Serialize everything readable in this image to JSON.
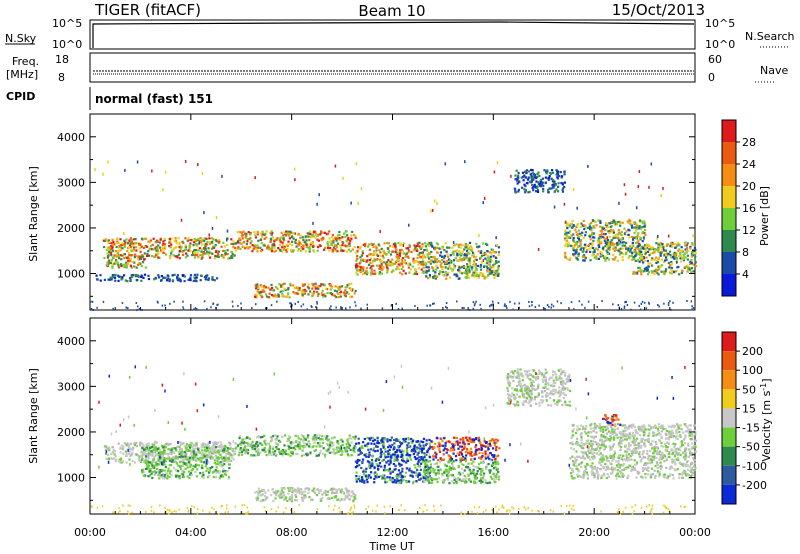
{
  "header": {
    "radar": "TIGER (fitACF)",
    "beam": "Beam 10",
    "date": "15/Oct/2013"
  },
  "top_panels": {
    "nsky_label": "N.Sky",
    "nsky_ticks": [
      "10^5",
      "10^0"
    ],
    "nsearch_label": "N.Search",
    "nsearch_ticks": [
      "10^5",
      "10^0"
    ],
    "freq_label": "Freq.",
    "freq_unit": "[MHz]",
    "freq_ticks": [
      "18",
      "8"
    ],
    "nave_label": "Nave",
    "nave_ticks": [
      "60",
      "0"
    ],
    "cpid_label": "CPID",
    "cpid_text": "normal (fast) 151"
  },
  "chart_data": [
    {
      "type": "heatmap",
      "name": "power-panel",
      "ylabel": "Slant Range [km]",
      "xlabel": "",
      "ylim": [
        200,
        4500
      ],
      "yticks": [
        "1000",
        "2000",
        "3000",
        "4000"
      ],
      "colorbar": {
        "label": "Power [dB]",
        "ticks": [
          "4",
          "8",
          "12",
          "16",
          "20",
          "24",
          "28"
        ],
        "colors": [
          "#0a1ad8",
          "#1c4aa8",
          "#2d8a4e",
          "#6fcf3a",
          "#f0cc1e",
          "#f58c14",
          "#ea5a10",
          "#de1a1a"
        ]
      },
      "regions": [
        {
          "x": [
            0.5,
            5.8
          ],
          "y": [
            1350,
            1800
          ],
          "level": "high"
        },
        {
          "x": [
            0.6,
            2.2
          ],
          "y": [
            1150,
            1450
          ],
          "level": "high"
        },
        {
          "x": [
            5.8,
            10.5
          ],
          "y": [
            1500,
            1950
          ],
          "level": "high"
        },
        {
          "x": [
            6.5,
            10.5
          ],
          "y": [
            500,
            800
          ],
          "level": "high"
        },
        {
          "x": [
            10.5,
            13.2
          ],
          "y": [
            1000,
            1700
          ],
          "level": "high"
        },
        {
          "x": [
            13.2,
            16.2
          ],
          "y": [
            900,
            1700
          ],
          "level": "mid"
        },
        {
          "x": [
            0.2,
            5.0
          ],
          "y": [
            850,
            1000
          ],
          "level": "low"
        },
        {
          "x": [
            16.8,
            18.8
          ],
          "y": [
            2800,
            3300
          ],
          "level": "low"
        },
        {
          "x": [
            18.8,
            22.0
          ],
          "y": [
            1300,
            2200
          ],
          "level": "mid"
        },
        {
          "x": [
            21.5,
            24.0
          ],
          "y": [
            1000,
            1700
          ],
          "level": "mid"
        }
      ]
    },
    {
      "type": "heatmap",
      "name": "velocity-panel",
      "ylabel": "Slant Range [km]",
      "xlabel": "Time UT",
      "ylim": [
        200,
        4500
      ],
      "yticks": [
        "1000",
        "2000",
        "3000",
        "4000"
      ],
      "xticks": [
        "00:00",
        "04:00",
        "08:00",
        "12:00",
        "16:00",
        "20:00",
        "00:00"
      ],
      "colorbar": {
        "label": "Velocity [m s-1]",
        "label_main": "Velocity [m s",
        "label_sup": "-1",
        "label_end": "]",
        "ticks": [
          "200",
          "100",
          "50",
          "15",
          "-15",
          "-50",
          "-100",
          "-200"
        ],
        "colors": [
          "#0a2ad8",
          "#2e5aa0",
          "#2d8a4e",
          "#6fcf3a",
          "#c8c8c8",
          "#f0cc1e",
          "#f58c14",
          "#ea5a10",
          "#de1a1a"
        ]
      },
      "regions": [
        {
          "x": [
            0.5,
            5.8
          ],
          "y": [
            1350,
            1800
          ],
          "level": "gray"
        },
        {
          "x": [
            2.0,
            5.5
          ],
          "y": [
            1000,
            1700
          ],
          "level": "green"
        },
        {
          "x": [
            5.8,
            10.5
          ],
          "y": [
            1500,
            1950
          ],
          "level": "green"
        },
        {
          "x": [
            6.5,
            10.5
          ],
          "y": [
            500,
            800
          ],
          "level": "gray"
        },
        {
          "x": [
            10.5,
            13.5
          ],
          "y": [
            900,
            1900
          ],
          "level": "blue"
        },
        {
          "x": [
            13.5,
            16.2
          ],
          "y": [
            1400,
            1900
          ],
          "level": "red"
        },
        {
          "x": [
            13.2,
            16.2
          ],
          "y": [
            900,
            1400
          ],
          "level": "green"
        },
        {
          "x": [
            16.5,
            19.0
          ],
          "y": [
            2600,
            3400
          ],
          "level": "gray"
        },
        {
          "x": [
            19.0,
            24.0
          ],
          "y": [
            1000,
            2200
          ],
          "level": "gray"
        },
        {
          "x": [
            20.3,
            21.0
          ],
          "y": [
            2150,
            2400
          ],
          "level": "red"
        }
      ]
    }
  ]
}
